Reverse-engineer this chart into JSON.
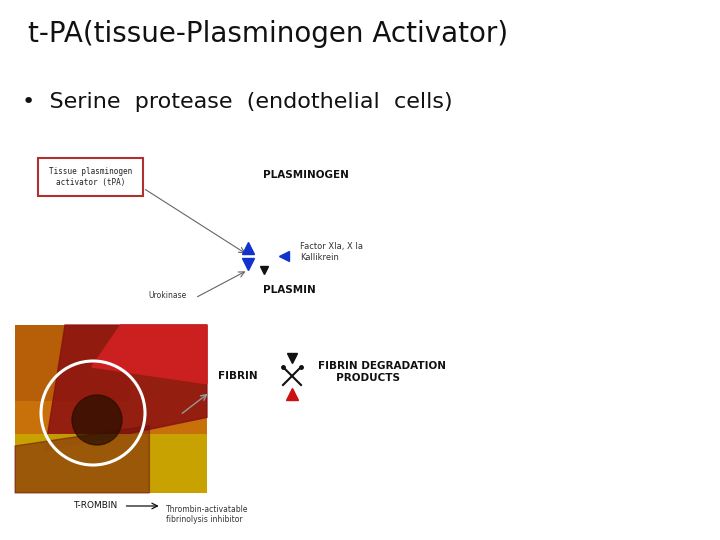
{
  "title": "t-PA(tissue-Plasminogen Activator)",
  "bullet": "•  Serine  protease  (endothelial  cells)",
  "title_fontsize": 20,
  "bullet_fontsize": 16,
  "bg_color": "#ffffff",
  "diagram": {
    "tpa_box_text": "Tissue plasminogen\nactivator (tPA)",
    "tpa_box_color": "#b03030",
    "plasminogen_label": "PLASMINOGEN",
    "plasmin_label": "PLASMIN",
    "fibrin_label": "FIBRIN",
    "fibrin_deg_label": "FIBRIN DEGRADATION\n     PRODUCTS",
    "factor_label": "Factor XIa, X Ia\nKallikrein",
    "urokinase_label": "Urokinase",
    "thrombin_label": "T-ROMBIN",
    "thrombin_arrow_label": "Thrombin-activatable\nfibrinolysis inhibitor",
    "diagram_label_fontsize": 7,
    "small_label_fontsize": 6
  }
}
